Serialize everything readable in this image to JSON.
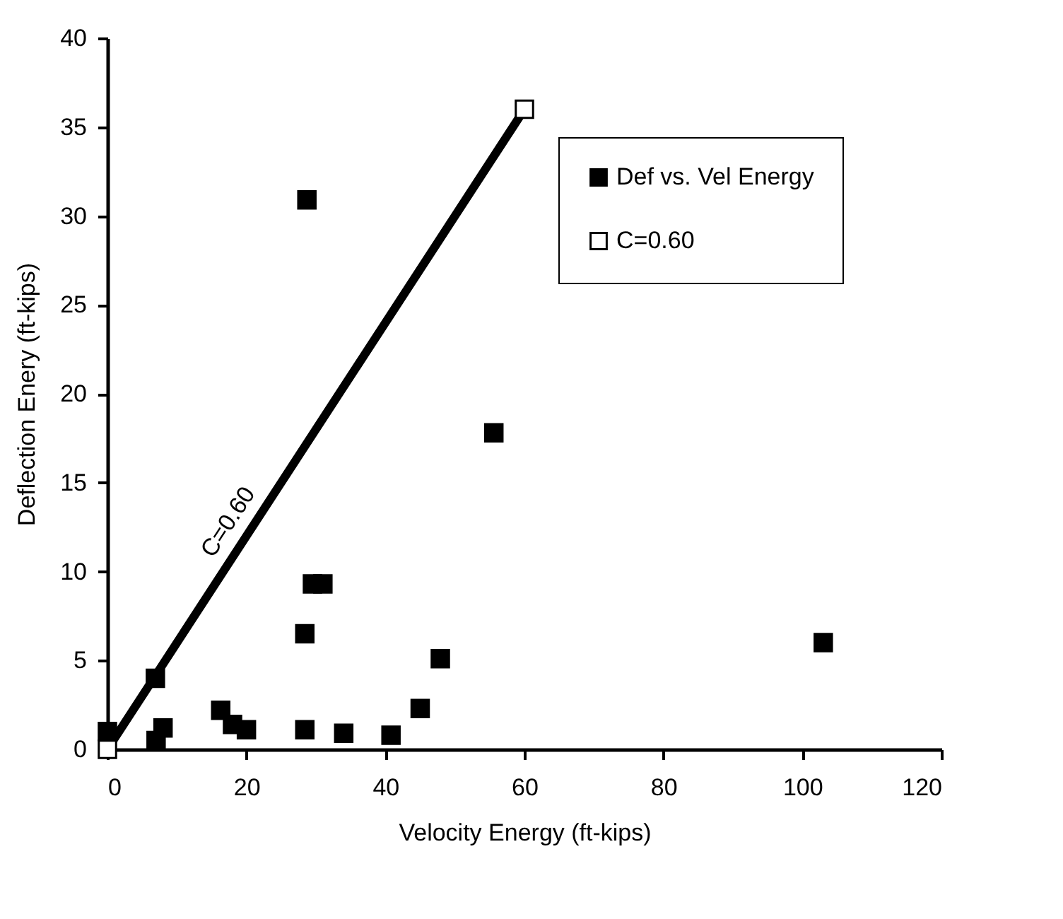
{
  "chart_data": {
    "type": "scatter",
    "xlabel": "Velocity Energy (ft-kips)",
    "ylabel": "Deflection Enery (ft-kips)",
    "xlim": [
      0,
      120
    ],
    "xticks": [
      0,
      20,
      40,
      60,
      80,
      100,
      120
    ],
    "ylim": [
      0,
      40
    ],
    "yticks": [
      0,
      5,
      10,
      15,
      20,
      25,
      30,
      35,
      40
    ],
    "grid": false,
    "legend": "top right",
    "marker": "square",
    "series": [
      {
        "name": "Def vs. Vel Energy",
        "color": "#000000",
        "x": [
          0,
          6.9,
          7,
          8,
          16.3,
          18,
          20,
          28.4,
          28.4,
          28.7,
          29.5,
          31,
          34,
          40.8,
          45,
          47.9,
          55.6,
          103
        ],
        "values": [
          1,
          4,
          0.5,
          1.2,
          2.2,
          1.4,
          1.1,
          1.1,
          6.5,
          30.9,
          9.3,
          9.3,
          0.9,
          0.8,
          2.3,
          5.1,
          17.8,
          6
        ]
      },
      {
        "name": "C=0.60",
        "type": "line",
        "color": "#000000",
        "x": [
          0,
          60
        ],
        "values": [
          0,
          36
        ]
      }
    ],
    "annotations": [
      "C=0.60"
    ]
  }
}
